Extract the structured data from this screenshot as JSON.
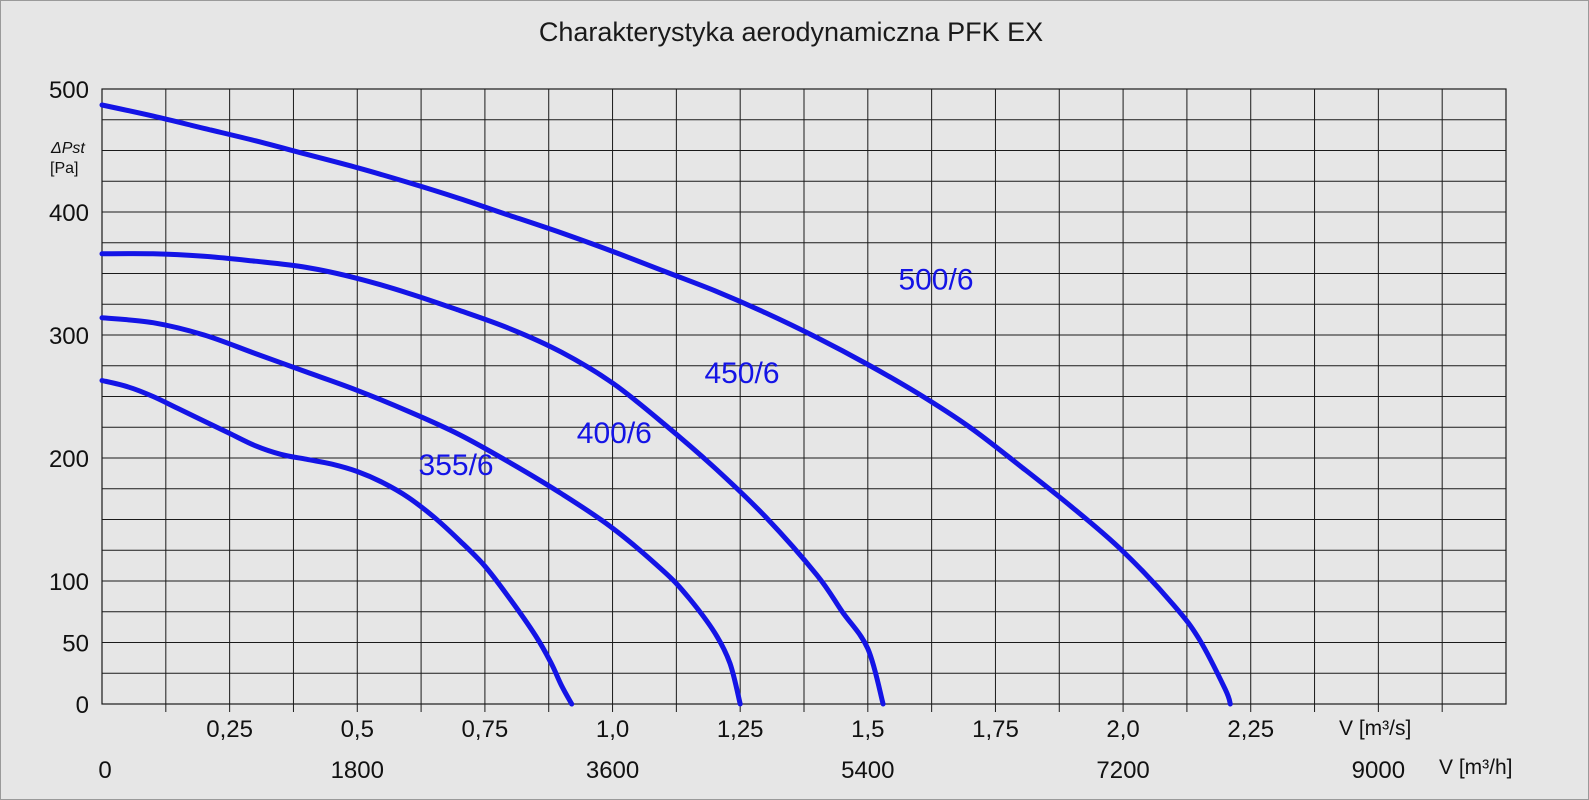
{
  "chart_data": {
    "type": "line",
    "title": "Charakterystyka aerodynamiczna PFK EX",
    "ylabel": "ΔPst",
    "ylabel_unit": "[Pa]",
    "xlabel_primary": "V [m³/s]",
    "xlabel_secondary": "V [m³/h]",
    "xlim": [
      0,
      2.75
    ],
    "ylim": [
      0,
      500
    ],
    "x_ticks_primary": [
      "0,25",
      "0,5",
      "0,75",
      "1,0",
      "1,25",
      "1,5",
      "1,75",
      "2,0",
      "2,25"
    ],
    "x_ticks_primary_values": [
      0.25,
      0.5,
      0.75,
      1.0,
      1.25,
      1.5,
      1.75,
      2.0,
      2.25
    ],
    "x_ticks_secondary": [
      "0",
      "1800",
      "3600",
      "5400",
      "7200",
      "9000"
    ],
    "x_ticks_secondary_values": [
      0,
      0.5,
      1.0,
      1.5,
      2.0,
      2.5
    ],
    "y_ticks": [
      "0",
      "50",
      "100",
      "200",
      "300",
      "400",
      "500"
    ],
    "y_ticks_values": [
      0,
      50,
      100,
      200,
      300,
      400,
      500
    ],
    "grid": true,
    "line_color": "#1414e6",
    "series": [
      {
        "name": "355/6",
        "label_x": 0.62,
        "label_y": 186,
        "x": [
          0,
          0.05,
          0.1,
          0.15,
          0.2,
          0.25,
          0.3,
          0.35,
          0.4,
          0.45,
          0.5,
          0.55,
          0.6,
          0.65,
          0.7,
          0.75,
          0.8,
          0.85,
          0.88,
          0.9,
          0.92
        ],
        "y": [
          263,
          258,
          250,
          240,
          230,
          220,
          210,
          203,
          199,
          195,
          189,
          180,
          168,
          152,
          133,
          112,
          85,
          55,
          33,
          15,
          0
        ]
      },
      {
        "name": "400/6",
        "label_x": 0.93,
        "label_y": 212,
        "x": [
          0,
          0.1,
          0.2,
          0.3,
          0.4,
          0.5,
          0.6,
          0.7,
          0.8,
          0.9,
          1.0,
          1.1,
          1.15,
          1.2,
          1.23,
          1.25
        ],
        "y": [
          314,
          310,
          300,
          285,
          270,
          255,
          238,
          219,
          196,
          171,
          143,
          108,
          86,
          58,
          33,
          0
        ]
      },
      {
        "name": "450/6",
        "label_x": 1.18,
        "label_y": 261,
        "x": [
          0,
          0.1,
          0.2,
          0.3,
          0.4,
          0.5,
          0.6,
          0.7,
          0.8,
          0.9,
          1.0,
          1.1,
          1.2,
          1.3,
          1.4,
          1.45,
          1.5,
          1.53
        ],
        "y": [
          366,
          366,
          364,
          360,
          355,
          346,
          334,
          320,
          305,
          286,
          261,
          228,
          192,
          152,
          105,
          75,
          45,
          0
        ]
      },
      {
        "name": "500/6",
        "label_x": 1.56,
        "label_y": 337,
        "x": [
          0,
          0.1,
          0.2,
          0.3,
          0.4,
          0.5,
          0.6,
          0.7,
          0.8,
          0.9,
          1.0,
          1.1,
          1.2,
          1.3,
          1.4,
          1.5,
          1.6,
          1.7,
          1.8,
          1.9,
          2.0,
          2.1,
          2.15,
          2.2,
          2.21
        ],
        "y": [
          487,
          478,
          468,
          458,
          447,
          436,
          424,
          411,
          397,
          383,
          368,
          352,
          336,
          318,
          298,
          276,
          252,
          225,
          193,
          160,
          124,
          80,
          52,
          12,
          0
        ]
      }
    ]
  }
}
